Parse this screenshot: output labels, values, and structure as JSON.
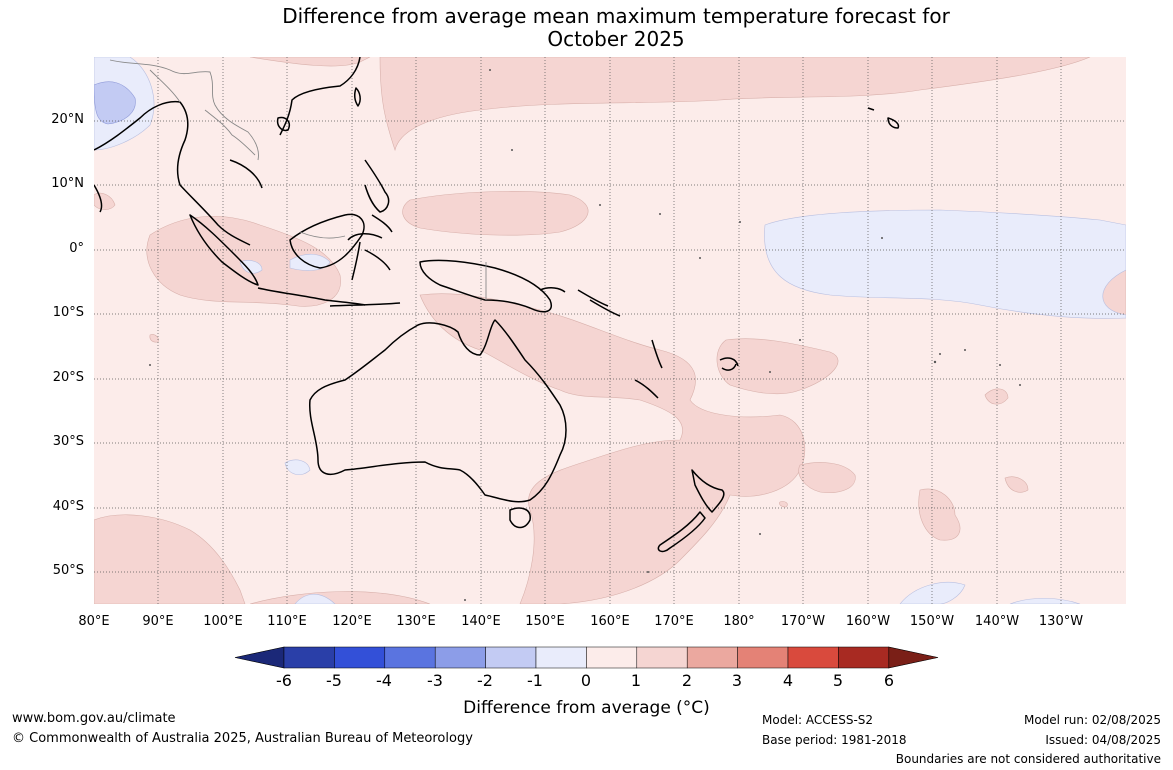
{
  "title_line1": "Difference from average mean maximum temperature forecast for",
  "title_line2": "October 2025",
  "lat_labels": [
    "20°N",
    "10°N",
    "0°",
    "10°S",
    "20°S",
    "30°S",
    "40°S",
    "50°S"
  ],
  "lon_labels": [
    "80°E",
    "90°E",
    "100°E",
    "110°E",
    "120°E",
    "130°E",
    "140°E",
    "150°E",
    "160°E",
    "170°E",
    "180°",
    "170°W",
    "160°W",
    "150°W",
    "140°W",
    "130°W"
  ],
  "colorbar": {
    "ticks": [
      "-6",
      "-5",
      "-4",
      "-3",
      "-2",
      "-1",
      "0",
      "1",
      "2",
      "3",
      "4",
      "5",
      "6"
    ],
    "colors": [
      "#1b2878",
      "#2a3fa8",
      "#3350d8",
      "#5a74e0",
      "#8c9de8",
      "#c3cbf3",
      "#e9ecfb",
      "#fcecea",
      "#f5d5d2",
      "#eba89f",
      "#e48276",
      "#d94a3d",
      "#a82a22",
      "#7a1f17"
    ],
    "title": "Difference from average (°C)"
  },
  "footer": {
    "website": "www.bom.gov.au/climate",
    "copyright": "© Commonwealth of Australia 2025, Australian Bureau of Meteorology",
    "model": "Model: ACCESS-S2",
    "base_period": "Base period: 1981-2018",
    "model_run": "Model run: 02/08/2025",
    "issued": "Issued: 04/08/2025",
    "disclaimer": "Boundaries are not considered authoritative"
  }
}
